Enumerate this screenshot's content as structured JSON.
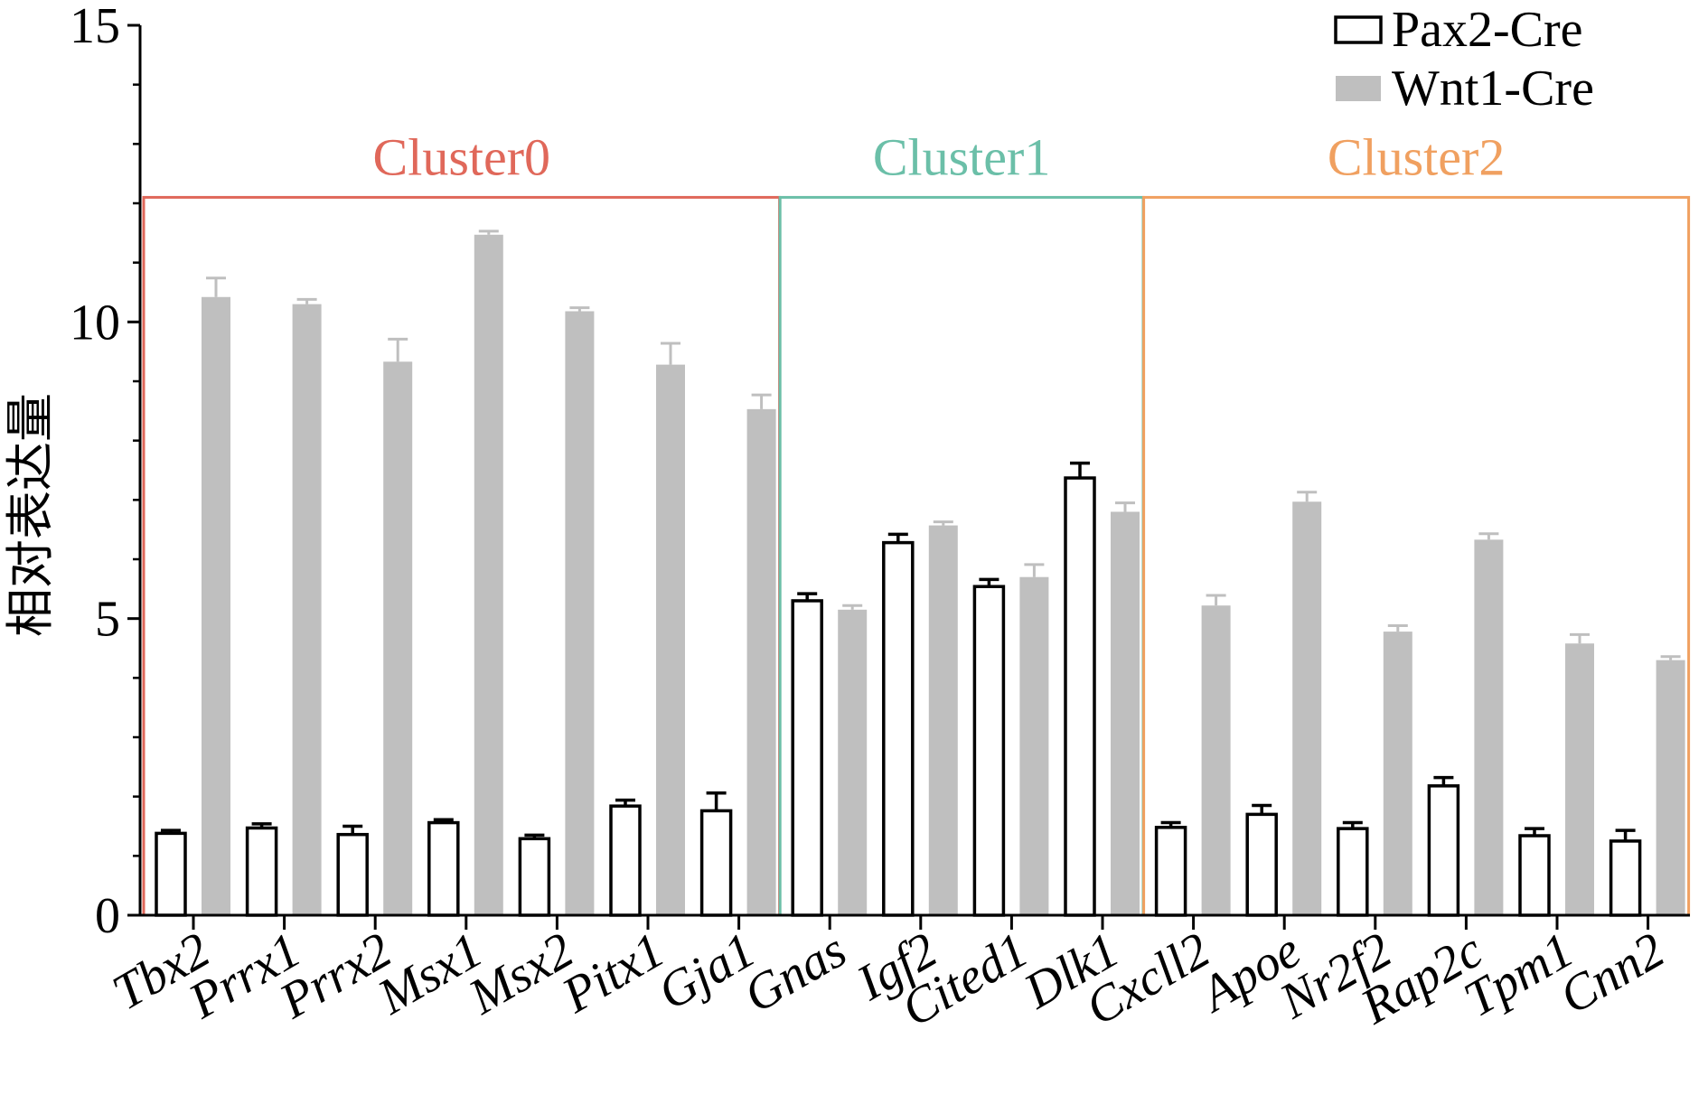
{
  "chart_data": {
    "type": "bar",
    "title": "",
    "xlabel": "",
    "ylabel": "相对表达量",
    "ylim": [
      0,
      15
    ],
    "yticks": [
      0,
      5,
      10,
      15
    ],
    "grid": false,
    "legend_position": "top-right",
    "categories": [
      "Tbx2",
      "Prrx1",
      "Prrx2",
      "Msx1",
      "Msx2",
      "Pitx1",
      "Gja1",
      "Gnas",
      "Igf2",
      "Cited1",
      "Dlk1",
      "Cxcll2",
      "Apoe",
      "Nr2f2",
      "Rap2c",
      "Tpm1",
      "Cnn2"
    ],
    "series": [
      {
        "name": "Pax2-Cre",
        "color": "#ffffff",
        "stroke": "#000000",
        "values": [
          1.38,
          1.47,
          1.36,
          1.56,
          1.29,
          1.84,
          1.76,
          5.3,
          6.28,
          5.54,
          7.37,
          1.48,
          1.7,
          1.46,
          2.18,
          1.34,
          1.25
        ],
        "errors": [
          0.05,
          0.07,
          0.14,
          0.05,
          0.06,
          0.1,
          0.3,
          0.12,
          0.14,
          0.12,
          0.25,
          0.08,
          0.15,
          0.1,
          0.14,
          0.12,
          0.18
        ]
      },
      {
        "name": "Wnt1-Cre",
        "color": "#bfbfbf",
        "stroke": "#bfbfbf",
        "values": [
          10.42,
          10.3,
          9.33,
          11.47,
          10.18,
          9.28,
          8.53,
          5.15,
          6.57,
          5.7,
          6.8,
          5.22,
          6.97,
          4.78,
          6.33,
          4.58,
          4.3
        ]
      }
    ],
    "wnt_errors": [
      0.32,
      0.08,
      0.38,
      0.06,
      0.06,
      0.36,
      0.24,
      0.07,
      0.06,
      0.21,
      0.15,
      0.17,
      0.16,
      0.1,
      0.1,
      0.15,
      0.06
    ],
    "clusters": [
      {
        "label": "Cluster0",
        "color": "#e0685a",
        "first": 0,
        "last": 6
      },
      {
        "label": "Cluster1",
        "color": "#6bbfa8",
        "first": 7,
        "last": 10
      },
      {
        "label": "Cluster2",
        "color": "#f0a060",
        "first": 11,
        "last": 16
      }
    ]
  }
}
